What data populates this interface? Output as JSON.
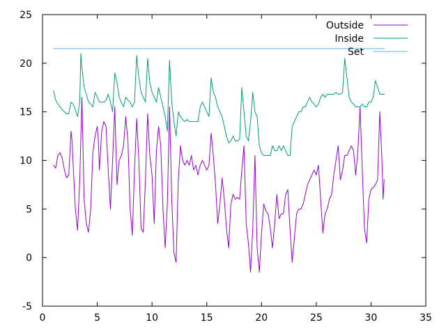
{
  "chart_data": {
    "type": "line",
    "title": "",
    "xlabel": "",
    "ylabel": "",
    "xlim": [
      0,
      35
    ],
    "ylim": [
      -5,
      25
    ],
    "xticks": [
      0,
      5,
      10,
      15,
      20,
      25,
      30,
      35
    ],
    "yticks": [
      -5,
      0,
      5,
      10,
      15,
      20,
      25
    ],
    "grid": false,
    "legend_position": "top-right",
    "series": [
      {
        "name": "Outside",
        "color": "#9400d3",
        "points": [
          [
            1.0,
            9.5
          ],
          [
            1.2,
            9.2
          ],
          [
            1.4,
            10.5
          ],
          [
            1.6,
            10.8
          ],
          [
            1.8,
            10.2
          ],
          [
            2.0,
            9.0
          ],
          [
            2.2,
            8.2
          ],
          [
            2.4,
            8.5
          ],
          [
            2.6,
            13.0
          ],
          [
            2.7,
            12.0
          ],
          [
            2.8,
            9.5
          ],
          [
            3.0,
            5.0
          ],
          [
            3.2,
            2.8
          ],
          [
            3.4,
            8.0
          ],
          [
            3.6,
            16.5
          ],
          [
            3.8,
            6.0
          ],
          [
            4.0,
            3.5
          ],
          [
            4.2,
            2.6
          ],
          [
            4.4,
            5.0
          ],
          [
            4.6,
            10.8
          ],
          [
            4.8,
            12.5
          ],
          [
            5.0,
            13.5
          ],
          [
            5.1,
            12.0
          ],
          [
            5.2,
            9.0
          ],
          [
            5.4,
            13.0
          ],
          [
            5.6,
            14.0
          ],
          [
            5.8,
            13.5
          ],
          [
            6.0,
            9.0
          ],
          [
            6.2,
            5.0
          ],
          [
            6.4,
            10.0
          ],
          [
            6.6,
            15.5
          ],
          [
            6.8,
            7.5
          ],
          [
            7.0,
            10.0
          ],
          [
            7.2,
            10.5
          ],
          [
            7.4,
            11.5
          ],
          [
            7.6,
            14.5
          ],
          [
            7.8,
            12.0
          ],
          [
            8.0,
            5.0
          ],
          [
            8.2,
            2.3
          ],
          [
            8.4,
            9.0
          ],
          [
            8.6,
            14.3
          ],
          [
            8.8,
            10.0
          ],
          [
            9.0,
            3.0
          ],
          [
            9.2,
            2.6
          ],
          [
            9.4,
            8.0
          ],
          [
            9.6,
            14.8
          ],
          [
            9.8,
            10.5
          ],
          [
            10.0,
            8.5
          ],
          [
            10.2,
            3.5
          ],
          [
            10.4,
            11.0
          ],
          [
            10.6,
            13.5
          ],
          [
            10.8,
            11.5
          ],
          [
            11.0,
            5.0
          ],
          [
            11.2,
            1.0
          ],
          [
            11.4,
            5.5
          ],
          [
            11.6,
            15.5
          ],
          [
            11.8,
            6.0
          ],
          [
            12.0,
            0.5
          ],
          [
            12.2,
            -0.5
          ],
          [
            12.4,
            8.0
          ],
          [
            12.6,
            11.5
          ],
          [
            12.8,
            10.0
          ],
          [
            13.0,
            9.5
          ],
          [
            13.2,
            10.0
          ],
          [
            13.4,
            9.5
          ],
          [
            13.6,
            10.5
          ],
          [
            13.8,
            9.0
          ],
          [
            14.0,
            9.5
          ],
          [
            14.2,
            8.5
          ],
          [
            14.4,
            9.5
          ],
          [
            14.6,
            10.0
          ],
          [
            14.8,
            9.5
          ],
          [
            15.0,
            9.0
          ],
          [
            15.2,
            9.5
          ],
          [
            15.4,
            12.8
          ],
          [
            15.6,
            10.5
          ],
          [
            15.8,
            7.5
          ],
          [
            16.0,
            3.5
          ],
          [
            16.2,
            5.5
          ],
          [
            16.4,
            8.2
          ],
          [
            16.6,
            6.0
          ],
          [
            16.8,
            3.0
          ],
          [
            17.0,
            1.0
          ],
          [
            17.2,
            5.5
          ],
          [
            17.4,
            6.5
          ],
          [
            17.6,
            6.0
          ],
          [
            17.8,
            6.2
          ],
          [
            18.0,
            6.0
          ],
          [
            18.2,
            9.0
          ],
          [
            18.4,
            11.5
          ],
          [
            18.6,
            3.5
          ],
          [
            18.8,
            1.5
          ],
          [
            19.0,
            -1.5
          ],
          [
            19.2,
            3.0
          ],
          [
            19.4,
            10.5
          ],
          [
            19.6,
            1.0
          ],
          [
            19.8,
            -1.5
          ],
          [
            20.0,
            2.5
          ],
          [
            20.2,
            5.5
          ],
          [
            20.4,
            4.8
          ],
          [
            20.6,
            4.5
          ],
          [
            20.8,
            3.0
          ],
          [
            21.0,
            1.0
          ],
          [
            21.2,
            3.5
          ],
          [
            21.4,
            6.5
          ],
          [
            21.6,
            4.0
          ],
          [
            21.8,
            4.5
          ],
          [
            22.0,
            4.5
          ],
          [
            22.2,
            6.5
          ],
          [
            22.4,
            7.0
          ],
          [
            22.6,
            3.0
          ],
          [
            22.8,
            -0.5
          ],
          [
            23.0,
            2.0
          ],
          [
            23.2,
            4.5
          ],
          [
            23.4,
            5.0
          ],
          [
            23.6,
            5.0
          ],
          [
            23.8,
            5.5
          ],
          [
            24.0,
            6.5
          ],
          [
            24.2,
            7.5
          ],
          [
            24.4,
            8.0
          ],
          [
            24.6,
            8.5
          ],
          [
            24.8,
            9.0
          ],
          [
            25.0,
            8.5
          ],
          [
            25.2,
            9.5
          ],
          [
            25.4,
            6.0
          ],
          [
            25.6,
            2.5
          ],
          [
            25.8,
            4.5
          ],
          [
            26.0,
            5.0
          ],
          [
            26.2,
            6.0
          ],
          [
            26.4,
            6.5
          ],
          [
            26.6,
            8.5
          ],
          [
            26.8,
            10.0
          ],
          [
            27.0,
            11.5
          ],
          [
            27.2,
            8.0
          ],
          [
            27.4,
            9.0
          ],
          [
            27.6,
            10.5
          ],
          [
            27.8,
            10.5
          ],
          [
            28.0,
            11.0
          ],
          [
            28.2,
            11.5
          ],
          [
            28.4,
            11.0
          ],
          [
            28.6,
            8.5
          ],
          [
            28.8,
            11.0
          ],
          [
            29.0,
            15.5
          ],
          [
            29.2,
            9.0
          ],
          [
            29.4,
            3.0
          ],
          [
            29.6,
            1.5
          ],
          [
            29.8,
            6.0
          ],
          [
            30.0,
            7.0
          ],
          [
            30.2,
            7.2
          ],
          [
            30.4,
            7.5
          ],
          [
            30.6,
            8.0
          ],
          [
            30.8,
            15.0
          ],
          [
            31.0,
            10.0
          ],
          [
            31.1,
            6.0
          ],
          [
            31.2,
            8.0
          ],
          [
            31.25,
            8.0
          ]
        ]
      },
      {
        "name": "Inside",
        "color": "#009e73",
        "points": [
          [
            1.0,
            17.2
          ],
          [
            1.2,
            16.2
          ],
          [
            1.4,
            15.8
          ],
          [
            1.6,
            15.5
          ],
          [
            1.8,
            15.2
          ],
          [
            2.0,
            15.0
          ],
          [
            2.2,
            14.8
          ],
          [
            2.4,
            14.8
          ],
          [
            2.6,
            16.0
          ],
          [
            2.8,
            15.8
          ],
          [
            3.0,
            15.2
          ],
          [
            3.2,
            14.5
          ],
          [
            3.4,
            16.0
          ],
          [
            3.5,
            21.0
          ],
          [
            3.6,
            19.5
          ],
          [
            3.8,
            17.5
          ],
          [
            4.0,
            16.8
          ],
          [
            4.2,
            16.0
          ],
          [
            4.4,
            15.8
          ],
          [
            4.6,
            15.5
          ],
          [
            4.8,
            17.0
          ],
          [
            5.0,
            16.5
          ],
          [
            5.2,
            16.0
          ],
          [
            5.4,
            16.0
          ],
          [
            5.6,
            16.0
          ],
          [
            5.8,
            16.2
          ],
          [
            6.0,
            16.8
          ],
          [
            6.2,
            16.0
          ],
          [
            6.4,
            15.0
          ],
          [
            6.6,
            19.0
          ],
          [
            6.8,
            18.0
          ],
          [
            7.0,
            16.5
          ],
          [
            7.2,
            16.0
          ],
          [
            7.4,
            15.5
          ],
          [
            7.6,
            16.5
          ],
          [
            7.8,
            16.2
          ],
          [
            8.0,
            16.0
          ],
          [
            8.2,
            15.5
          ],
          [
            8.4,
            16.0
          ],
          [
            8.6,
            20.8
          ],
          [
            8.8,
            18.5
          ],
          [
            9.0,
            17.0
          ],
          [
            9.2,
            16.5
          ],
          [
            9.4,
            16.0
          ],
          [
            9.6,
            20.5
          ],
          [
            9.8,
            18.0
          ],
          [
            10.0,
            17.0
          ],
          [
            10.2,
            16.5
          ],
          [
            10.4,
            16.0
          ],
          [
            10.6,
            17.5
          ],
          [
            10.8,
            16.5
          ],
          [
            11.0,
            15.5
          ],
          [
            11.2,
            14.5
          ],
          [
            11.4,
            13.0
          ],
          [
            11.6,
            20.3
          ],
          [
            11.8,
            16.0
          ],
          [
            12.0,
            14.0
          ],
          [
            12.2,
            12.5
          ],
          [
            12.4,
            15.0
          ],
          [
            12.6,
            14.5
          ],
          [
            12.8,
            14.2
          ],
          [
            13.0,
            14.0
          ],
          [
            13.2,
            14.2
          ],
          [
            13.4,
            14.0
          ],
          [
            13.6,
            14.0
          ],
          [
            13.8,
            14.0
          ],
          [
            14.0,
            14.0
          ],
          [
            14.2,
            14.0
          ],
          [
            14.4,
            15.5
          ],
          [
            14.6,
            16.0
          ],
          [
            14.8,
            15.5
          ],
          [
            15.0,
            15.0
          ],
          [
            15.2,
            14.5
          ],
          [
            15.4,
            18.5
          ],
          [
            15.6,
            17.0
          ],
          [
            15.8,
            16.5
          ],
          [
            16.0,
            15.5
          ],
          [
            16.2,
            15.0
          ],
          [
            16.4,
            14.5
          ],
          [
            16.6,
            13.5
          ],
          [
            16.8,
            12.5
          ],
          [
            17.0,
            11.8
          ],
          [
            17.2,
            12.0
          ],
          [
            17.4,
            12.5
          ],
          [
            17.6,
            12.0
          ],
          [
            17.8,
            12.0
          ],
          [
            18.0,
            12.2
          ],
          [
            18.2,
            17.5
          ],
          [
            18.4,
            15.0
          ],
          [
            18.6,
            12.5
          ],
          [
            18.8,
            12.0
          ],
          [
            19.0,
            14.0
          ],
          [
            19.2,
            17.0
          ],
          [
            19.4,
            15.0
          ],
          [
            19.6,
            14.5
          ],
          [
            19.8,
            11.5
          ],
          [
            20.0,
            10.8
          ],
          [
            20.2,
            10.5
          ],
          [
            20.4,
            10.5
          ],
          [
            20.6,
            10.5
          ],
          [
            20.8,
            10.5
          ],
          [
            21.0,
            11.5
          ],
          [
            21.2,
            11.0
          ],
          [
            21.4,
            11.0
          ],
          [
            21.6,
            11.5
          ],
          [
            21.8,
            11.0
          ],
          [
            22.0,
            11.5
          ],
          [
            22.2,
            11.0
          ],
          [
            22.4,
            10.5
          ],
          [
            22.6,
            10.5
          ],
          [
            22.8,
            13.5
          ],
          [
            23.0,
            14.0
          ],
          [
            23.2,
            14.5
          ],
          [
            23.4,
            15.0
          ],
          [
            23.6,
            15.0
          ],
          [
            23.8,
            15.5
          ],
          [
            24.0,
            15.5
          ],
          [
            24.2,
            16.0
          ],
          [
            24.4,
            16.5
          ],
          [
            24.6,
            16.0
          ],
          [
            24.8,
            15.8
          ],
          [
            25.0,
            15.5
          ],
          [
            25.2,
            15.8
          ],
          [
            25.4,
            16.5
          ],
          [
            25.6,
            16.8
          ],
          [
            25.8,
            16.5
          ],
          [
            26.0,
            16.8
          ],
          [
            26.2,
            16.8
          ],
          [
            26.4,
            16.8
          ],
          [
            26.6,
            16.8
          ],
          [
            26.8,
            17.0
          ],
          [
            27.0,
            16.8
          ],
          [
            27.2,
            16.8
          ],
          [
            27.4,
            17.0
          ],
          [
            27.6,
            20.5
          ],
          [
            27.8,
            18.5
          ],
          [
            28.0,
            16.5
          ],
          [
            28.2,
            16.0
          ],
          [
            28.4,
            15.8
          ],
          [
            28.6,
            15.5
          ],
          [
            28.8,
            15.5
          ],
          [
            29.0,
            15.5
          ],
          [
            29.2,
            15.8
          ],
          [
            29.4,
            15.5
          ],
          [
            29.6,
            15.5
          ],
          [
            29.8,
            16.0
          ],
          [
            30.0,
            16.0
          ],
          [
            30.2,
            16.5
          ],
          [
            30.4,
            18.2
          ],
          [
            30.6,
            17.5
          ],
          [
            30.8,
            16.8
          ],
          [
            31.0,
            16.8
          ],
          [
            31.25,
            16.8
          ]
        ]
      },
      {
        "name": "Set",
        "color": "#56b4e9",
        "points": [
          [
            1.0,
            21.5
          ],
          [
            31.25,
            21.5
          ]
        ]
      }
    ]
  }
}
